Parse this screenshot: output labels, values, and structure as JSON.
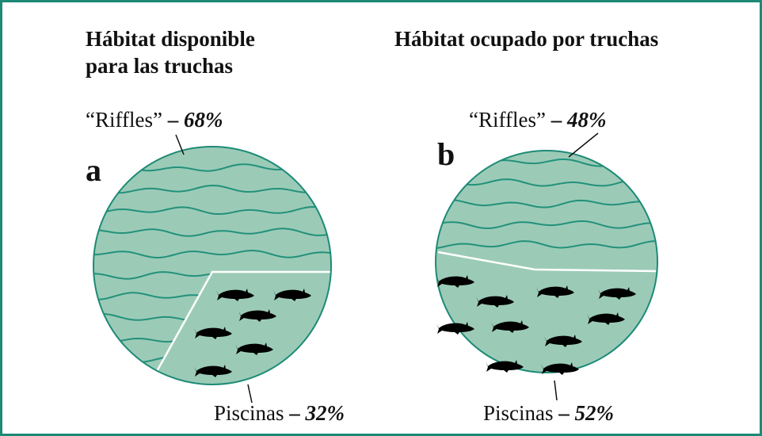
{
  "panels": [
    {
      "title": [
        "Hábitat disponible",
        "para las truchas"
      ],
      "letter": "a",
      "riffles": {
        "name": "“Riffles”",
        "separator": "–",
        "value": "68%"
      },
      "pools": {
        "name": "Piscinas",
        "separator": "–",
        "value": "32%"
      }
    },
    {
      "title": [
        "Hábitat ocupado por truchas"
      ],
      "letter": "b",
      "riffles": {
        "name": "“Riffles”",
        "separator": "–",
        "value": "48%"
      },
      "pools": {
        "name": "Piscinas",
        "separator": "–",
        "value": "52%"
      }
    }
  ]
}
